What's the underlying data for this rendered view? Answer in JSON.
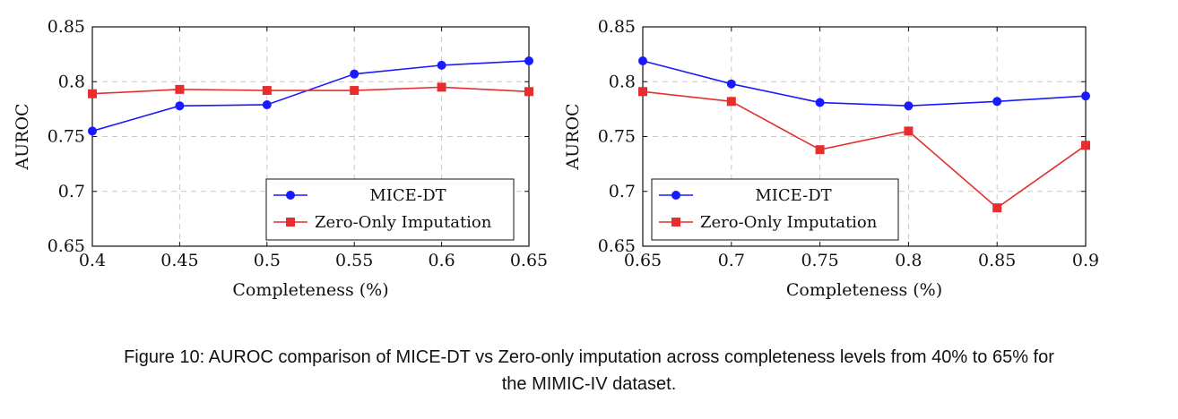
{
  "chart_data": [
    {
      "type": "line",
      "xlabel": "Completeness (%)",
      "ylabel": "AUROC",
      "x": [
        0.4,
        0.45,
        0.5,
        0.55,
        0.6,
        0.65
      ],
      "xticks": [
        "0.4",
        "0.45",
        "0.5",
        "0.55",
        "0.6",
        "0.65"
      ],
      "yticks": [
        "0.65",
        "0.7",
        "0.75",
        "0.8",
        "0.85"
      ],
      "xlim": [
        0.4,
        0.65
      ],
      "ylim": [
        0.65,
        0.85
      ],
      "grid": true,
      "legend_position": "bottom-right",
      "series": [
        {
          "name": "MICE-DT",
          "color": "#1a1aff",
          "marker": "circle",
          "values": [
            0.755,
            0.778,
            0.779,
            0.807,
            0.815,
            0.819
          ]
        },
        {
          "name": "Zero-Only Imputation",
          "color": "#e62e2e",
          "marker": "square",
          "values": [
            0.789,
            0.793,
            0.792,
            0.792,
            0.795,
            0.791
          ]
        }
      ]
    },
    {
      "type": "line",
      "xlabel": "Completeness (%)",
      "ylabel": "AUROC",
      "x": [
        0.65,
        0.7,
        0.75,
        0.8,
        0.85,
        0.9
      ],
      "xticks": [
        "0.65",
        "0.7",
        "0.75",
        "0.8",
        "0.85",
        "0.9"
      ],
      "yticks": [
        "0.65",
        "0.7",
        "0.75",
        "0.8",
        "0.85"
      ],
      "xlim": [
        0.65,
        0.9
      ],
      "ylim": [
        0.65,
        0.85
      ],
      "grid": true,
      "legend_position": "bottom-left",
      "series": [
        {
          "name": "MICE-DT",
          "color": "#1a1aff",
          "marker": "circle",
          "values": [
            0.819,
            0.798,
            0.781,
            0.778,
            0.782,
            0.787
          ]
        },
        {
          "name": "Zero-Only Imputation",
          "color": "#e62e2e",
          "marker": "square",
          "values": [
            0.791,
            0.782,
            0.738,
            0.755,
            0.685,
            0.742
          ]
        }
      ]
    }
  ],
  "caption": {
    "line1": "Figure 10: AUROC comparison of MICE-DT vs Zero-only imputation across completeness levels from 40% to 65% for",
    "line2": "the MIMIC-IV dataset."
  }
}
